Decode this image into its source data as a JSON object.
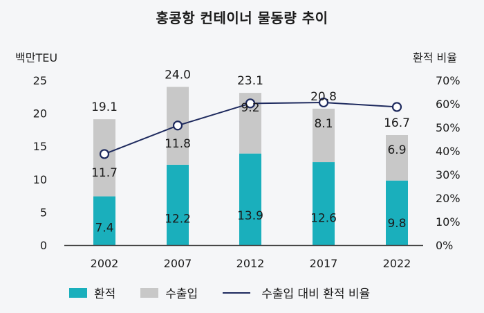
{
  "chart_data": {
    "type": "bar",
    "stacked": true,
    "title": "홍콩항 컨테이너 물동량 추이",
    "ylabel": "백만TEU",
    "y2label": "환적 비율",
    "ylim": [
      0,
      25
    ],
    "y2lim": [
      0,
      70
    ],
    "yticks": [
      "0",
      "5",
      "10",
      "15",
      "20",
      "25"
    ],
    "y2ticks": [
      "0%",
      "10%",
      "20%",
      "30%",
      "40%",
      "50%",
      "60%",
      "70%"
    ],
    "categories": [
      "2002",
      "2007",
      "2012",
      "2017",
      "2022"
    ],
    "series": [
      {
        "name": "환적",
        "type": "bar",
        "color": "#1aafbc",
        "values": [
          7.4,
          12.2,
          13.9,
          12.6,
          9.8
        ],
        "labels": [
          "7.4",
          "12.2",
          "13.9",
          "12.6",
          "9.8"
        ]
      },
      {
        "name": "수출입",
        "type": "bar",
        "color": "#c8c8c8",
        "values": [
          11.7,
          11.8,
          9.2,
          8.1,
          6.9
        ],
        "labels": [
          "11.7",
          "11.8",
          "9.2",
          "8.1",
          "6.9"
        ]
      },
      {
        "name": "수출입 대비 환적 비율",
        "type": "line",
        "axis": "right",
        "color": "#1e2a5e",
        "values": [
          38.7,
          50.8,
          60.2,
          60.6,
          58.7
        ]
      }
    ],
    "totals": [
      "19.1",
      "24.0",
      "23.1",
      "20.8",
      "16.7"
    ],
    "grid": false,
    "legend": "bottom"
  }
}
